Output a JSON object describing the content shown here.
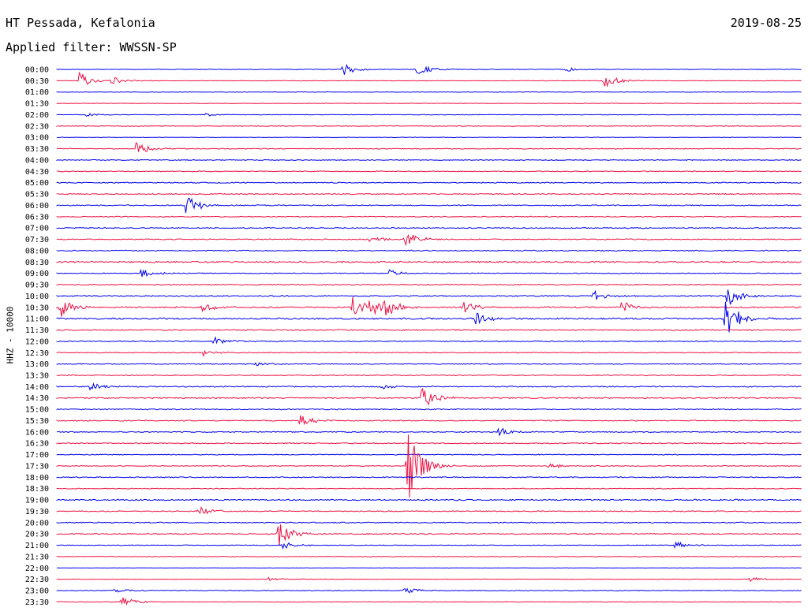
{
  "header": {
    "station": "HT Pessada, Kefalonia",
    "date": "2019-08-25",
    "filter_label": "Applied filter: WWSSN-SP",
    "channel_label": "HHZ - 10000"
  },
  "colors": {
    "trace_a": "#0000ee",
    "trace_b": "#ee1144"
  },
  "chart_data": {
    "type": "line",
    "title": "HT Pessada, Kefalonia",
    "subtitle": "Applied filter: WWSSN-SP",
    "ylabel": "HHZ - 10000",
    "date": "2019-08-25",
    "row_labels": [
      "00:00",
      "00:30",
      "01:00",
      "01:30",
      "02:00",
      "02:30",
      "03:00",
      "03:30",
      "04:00",
      "04:30",
      "05:00",
      "05:30",
      "06:00",
      "06:30",
      "07:00",
      "07:30",
      "08:00",
      "08:30",
      "09:00",
      "09:30",
      "10:00",
      "10:30",
      "11:00",
      "11:30",
      "12:00",
      "12:30",
      "13:00",
      "13:30",
      "14:00",
      "14:30",
      "15:00",
      "15:30",
      "16:00",
      "16:30",
      "17:00",
      "17:30",
      "18:00",
      "18:30",
      "19:00",
      "19:30",
      "20:00",
      "20:30",
      "21:00",
      "21:30",
      "22:00",
      "22:30",
      "23:00",
      "23:30"
    ],
    "row_minutes": 30,
    "noise_level": [
      0.3,
      0.3,
      0.3,
      0.3,
      0.3,
      0.4,
      0.3,
      0.5,
      0.5,
      0.5,
      0.6,
      0.6,
      0.6,
      0.5,
      0.6,
      0.6,
      0.6,
      0.9,
      0.5,
      0.6,
      0.7,
      0.8,
      0.9,
      0.7,
      0.6,
      0.5,
      0.5,
      0.6,
      0.6,
      0.7,
      0.6,
      0.6,
      0.6,
      0.6,
      0.5,
      0.5,
      0.6,
      0.5,
      0.8,
      0.6,
      0.6,
      0.6,
      0.4,
      0.4,
      0.2,
      0.3,
      0.4,
      0.4
    ],
    "events": [
      {
        "row": 0,
        "minute": 11.5,
        "amp": 8
      },
      {
        "row": 0,
        "minute": 14.5,
        "amp": 8
      },
      {
        "row": 0,
        "minute": 20.5,
        "amp": 3
      },
      {
        "row": 1,
        "minute": 0.9,
        "amp": 12
      },
      {
        "row": 1,
        "minute": 2.2,
        "amp": 5
      },
      {
        "row": 1,
        "minute": 22.0,
        "amp": 10
      },
      {
        "row": 4,
        "minute": 1.2,
        "amp": 2
      },
      {
        "row": 4,
        "minute": 6.0,
        "amp": 2
      },
      {
        "row": 7,
        "minute": 3.2,
        "amp": 9
      },
      {
        "row": 12,
        "minute": 5.2,
        "amp": 14
      },
      {
        "row": 15,
        "minute": 12.6,
        "amp": 6
      },
      {
        "row": 15,
        "minute": 14.0,
        "amp": 12
      },
      {
        "row": 18,
        "minute": 3.4,
        "amp": 6
      },
      {
        "row": 18,
        "minute": 13.4,
        "amp": 5
      },
      {
        "row": 20,
        "minute": 21.6,
        "amp": 7
      },
      {
        "row": 20,
        "minute": 27.0,
        "amp": 14
      },
      {
        "row": 21,
        "minute": 0.1,
        "amp": 14
      },
      {
        "row": 21,
        "minute": 5.8,
        "amp": 7
      },
      {
        "row": 21,
        "minute": 11.9,
        "amp": 14
      },
      {
        "row": 21,
        "minute": 12.6,
        "amp": 14
      },
      {
        "row": 21,
        "minute": 13.2,
        "amp": 14
      },
      {
        "row": 21,
        "minute": 16.3,
        "amp": 9
      },
      {
        "row": 21,
        "minute": 22.7,
        "amp": 9
      },
      {
        "row": 22,
        "minute": 16.8,
        "amp": 9
      },
      {
        "row": 22,
        "minute": 26.9,
        "amp": 30
      },
      {
        "row": 24,
        "minute": 6.3,
        "amp": 6
      },
      {
        "row": 25,
        "minute": 5.8,
        "amp": 6
      },
      {
        "row": 26,
        "minute": 8.0,
        "amp": 3
      },
      {
        "row": 28,
        "minute": 1.3,
        "amp": 6
      },
      {
        "row": 28,
        "minute": 13.1,
        "amp": 4
      },
      {
        "row": 29,
        "minute": 14.7,
        "amp": 16
      },
      {
        "row": 31,
        "minute": 9.8,
        "amp": 8
      },
      {
        "row": 32,
        "minute": 17.8,
        "amp": 6
      },
      {
        "row": 35,
        "minute": 14.1,
        "amp": 55
      },
      {
        "row": 35,
        "minute": 19.8,
        "amp": 4
      },
      {
        "row": 39,
        "minute": 5.7,
        "amp": 6
      },
      {
        "row": 41,
        "minute": 8.9,
        "amp": 18
      },
      {
        "row": 42,
        "minute": 9.1,
        "amp": 5
      },
      {
        "row": 42,
        "minute": 24.9,
        "amp": 5
      },
      {
        "row": 45,
        "minute": 8.5,
        "amp": 3
      },
      {
        "row": 45,
        "minute": 27.9,
        "amp": 3
      },
      {
        "row": 46,
        "minute": 2.3,
        "amp": 4
      },
      {
        "row": 46,
        "minute": 14.0,
        "amp": 5
      },
      {
        "row": 47,
        "minute": 2.6,
        "amp": 8
      }
    ]
  }
}
